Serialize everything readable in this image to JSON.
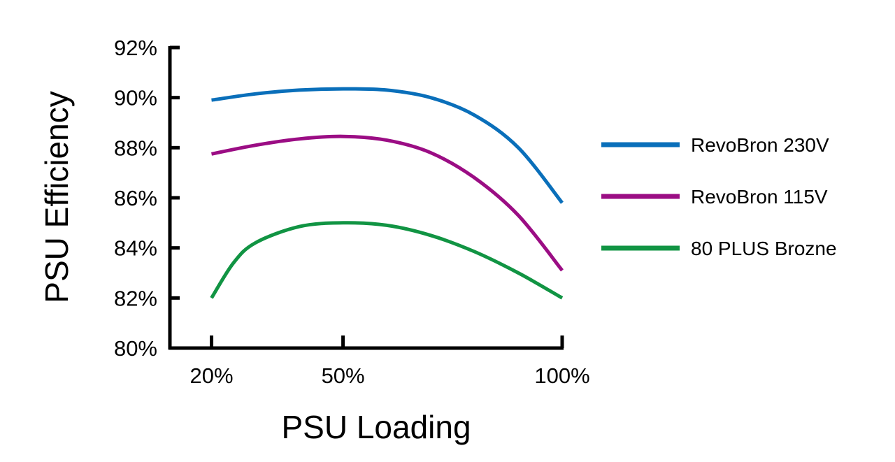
{
  "chart_data": {
    "type": "line",
    "title": "",
    "xlabel": "PSU Loading",
    "ylabel": "PSU Efficiency",
    "x_categories": [
      "20%",
      "50%",
      "100%"
    ],
    "x": [
      20,
      50,
      100
    ],
    "x_range": [
      10.5,
      100
    ],
    "ylim": [
      80,
      92
    ],
    "y_ticks": [
      80,
      82,
      84,
      86,
      88,
      90,
      92
    ],
    "y_tick_labels": [
      "80%",
      "82%",
      "84%",
      "86%",
      "88%",
      "90%",
      "92%"
    ],
    "grid": false,
    "legend_position": "right",
    "series": [
      {
        "name": "RevoBron 230V",
        "color": "#0a6fba",
        "points": [
          [
            20,
            89.9
          ],
          [
            30,
            90.15
          ],
          [
            40,
            90.3
          ],
          [
            50,
            90.35
          ],
          [
            60,
            90.3
          ],
          [
            70,
            90.0
          ],
          [
            80,
            89.3
          ],
          [
            90,
            88.0
          ],
          [
            100,
            85.8
          ]
        ]
      },
      {
        "name": "RevoBron 115V",
        "color": "#9b0d84",
        "points": [
          [
            20,
            87.75
          ],
          [
            30,
            88.1
          ],
          [
            40,
            88.35
          ],
          [
            50,
            88.45
          ],
          [
            60,
            88.3
          ],
          [
            70,
            87.8
          ],
          [
            80,
            86.8
          ],
          [
            90,
            85.3
          ],
          [
            100,
            83.1
          ]
        ]
      },
      {
        "name": "80 PLUS Brozne",
        "color": "#119443",
        "points": [
          [
            20,
            82.0
          ],
          [
            25,
            83.4
          ],
          [
            30,
            84.2
          ],
          [
            40,
            84.85
          ],
          [
            50,
            85.0
          ],
          [
            60,
            84.9
          ],
          [
            70,
            84.5
          ],
          [
            80,
            83.85
          ],
          [
            90,
            83.0
          ],
          [
            100,
            82.0
          ]
        ]
      }
    ]
  }
}
